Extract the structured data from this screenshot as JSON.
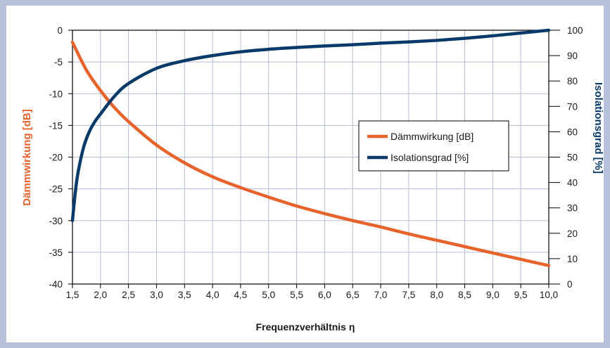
{
  "chart_data": {
    "type": "line",
    "xlabel": "Frequenzverhältnis η",
    "ylabel_left": "Dämmwirkung [dB]",
    "ylabel_right": "Isolationsgrad [%]",
    "x_ticks": [
      "1,5",
      "2,0",
      "2,5",
      "3,0",
      "3,5",
      "4,0",
      "4,5",
      "5,0",
      "5,5",
      "6,0",
      "6,5",
      "7,0",
      "7,5",
      "8,0",
      "8,5",
      "9,0",
      "9,5",
      "10,0"
    ],
    "x_tick_values": [
      1.5,
      2.0,
      2.5,
      3.0,
      3.5,
      4.0,
      4.5,
      5.0,
      5.5,
      6.0,
      6.5,
      7.0,
      7.5,
      8.0,
      8.5,
      9.0,
      9.5,
      10.0
    ],
    "xlim": [
      1.5,
      10.0
    ],
    "y_left_ticks": [
      "0",
      "-5",
      "-10",
      "-15",
      "-20",
      "-25",
      "-30",
      "-35",
      "-40"
    ],
    "y_left_tick_values": [
      0,
      -5,
      -10,
      -15,
      -20,
      -25,
      -30,
      -35,
      -40
    ],
    "ylim_left": [
      -40,
      0
    ],
    "y_right_ticks": [
      "100",
      "90",
      "80",
      "70",
      "60",
      "50",
      "40",
      "30",
      "20",
      "10",
      "0"
    ],
    "y_right_tick_values": [
      100,
      90,
      80,
      70,
      60,
      50,
      40,
      30,
      20,
      10,
      0
    ],
    "ylim_right": [
      0,
      100
    ],
    "grid": true,
    "legend_position": "right",
    "series": [
      {
        "name": "Dämmwirkung [dB]",
        "axis": "left",
        "color": "#e8622c",
        "x": [
          1.5,
          1.75,
          2.0,
          2.25,
          2.5,
          3.0,
          3.5,
          4.0,
          4.5,
          5.0,
          5.5,
          6.0,
          6.5,
          7.0,
          7.5,
          8.0,
          8.5,
          9.0,
          9.5,
          10.0
        ],
        "values": [
          -1.9,
          -6.3,
          -9.5,
          -12.2,
          -14.4,
          -18.1,
          -20.9,
          -23.1,
          -24.8,
          -26.3,
          -27.7,
          -28.9,
          -30.0,
          -31.0,
          -32.1,
          -33.1,
          -34.1,
          -35.1,
          -36.1,
          -37.1
        ]
      },
      {
        "name": "Isolationsgrad [%]",
        "axis": "right",
        "color": "#083a69",
        "x": [
          1.5,
          1.55,
          1.6,
          1.7,
          1.8,
          1.9,
          2.0,
          2.25,
          2.5,
          3.0,
          3.5,
          4.0,
          4.5,
          5.0,
          5.5,
          6.0,
          6.5,
          7.0,
          7.5,
          8.0,
          8.5,
          9.0,
          9.5,
          10.0
        ],
        "values": [
          25,
          36,
          44,
          54,
          60,
          64,
          67,
          74,
          79,
          85,
          88,
          90,
          91.5,
          92.5,
          93.2,
          93.8,
          94.3,
          94.9,
          95.4,
          96.0,
          96.8,
          97.8,
          98.9,
          100
        ]
      }
    ]
  }
}
